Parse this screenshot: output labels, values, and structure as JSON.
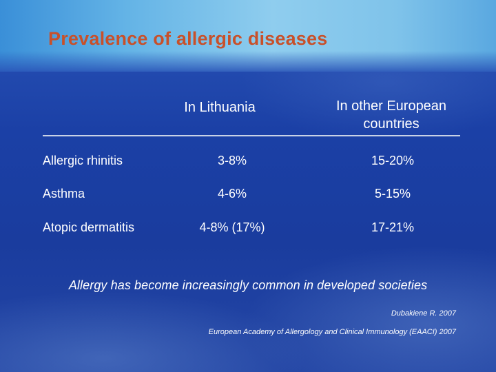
{
  "title": "Prevalence of allergic diseases",
  "table": {
    "headers": [
      "",
      "In Lithuania",
      "In other European countries"
    ],
    "rows": [
      {
        "disease": "Allergic rhinitis",
        "lithuania": "3-8%",
        "europe": "15-20%"
      },
      {
        "disease": "Asthma",
        "lithuania": "4-6%",
        "europe": "5-15%"
      },
      {
        "disease": "Atopic dermatitis",
        "lithuania": "4-8% (17%)",
        "europe": "17-21%"
      }
    ]
  },
  "note": "Allergy has become increasingly common in developed societies",
  "references": [
    "Dubakiene R. 2007",
    "European Academy of Allergology and Clinical Immunology (EAACI) 2007"
  ],
  "colors": {
    "title": "#c8502a",
    "background": "#1b3fa0",
    "title_band": "#8fcdee",
    "text": "#ffffff"
  }
}
